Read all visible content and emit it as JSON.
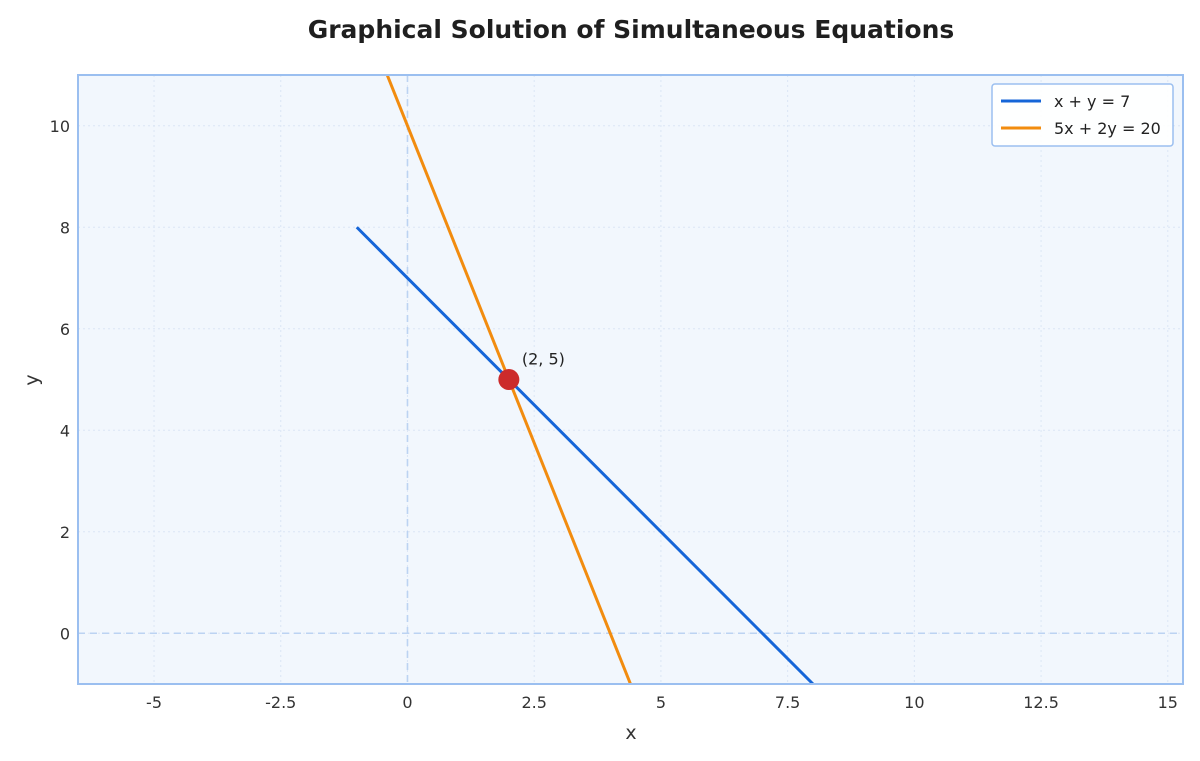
{
  "chart_data": {
    "type": "line",
    "title": "Graphical Solution of Simultaneous Equations",
    "xlabel": "x",
    "ylabel": "y",
    "xlim": [
      -6.5,
      15.3
    ],
    "ylim": [
      -1,
      11
    ],
    "x_ticks": [
      -5,
      -2.5,
      0,
      2.5,
      5,
      7.5,
      10,
      12.5,
      15
    ],
    "y_ticks": [
      0,
      2,
      4,
      6,
      8,
      10
    ],
    "grid": true,
    "legend_position": "top-right",
    "series": [
      {
        "name": "x + y = 7",
        "color": "#1565d8",
        "x": [
          -1,
          8
        ],
        "y": [
          8,
          -1
        ]
      },
      {
        "name": "5x + 2y = 20",
        "color": "#f28c0f",
        "x": [
          -0.4,
          4.4
        ],
        "y": [
          11,
          -1
        ]
      }
    ],
    "intersection": {
      "x": 2,
      "y": 5,
      "label": "(2, 5)",
      "color": "#cc2b2b"
    },
    "colors": {
      "plot_background": "#f2f7fd",
      "frame": "#9bbff0",
      "grid": "#dbe6f5",
      "zero_lines": "#bcd3f2"
    }
  }
}
